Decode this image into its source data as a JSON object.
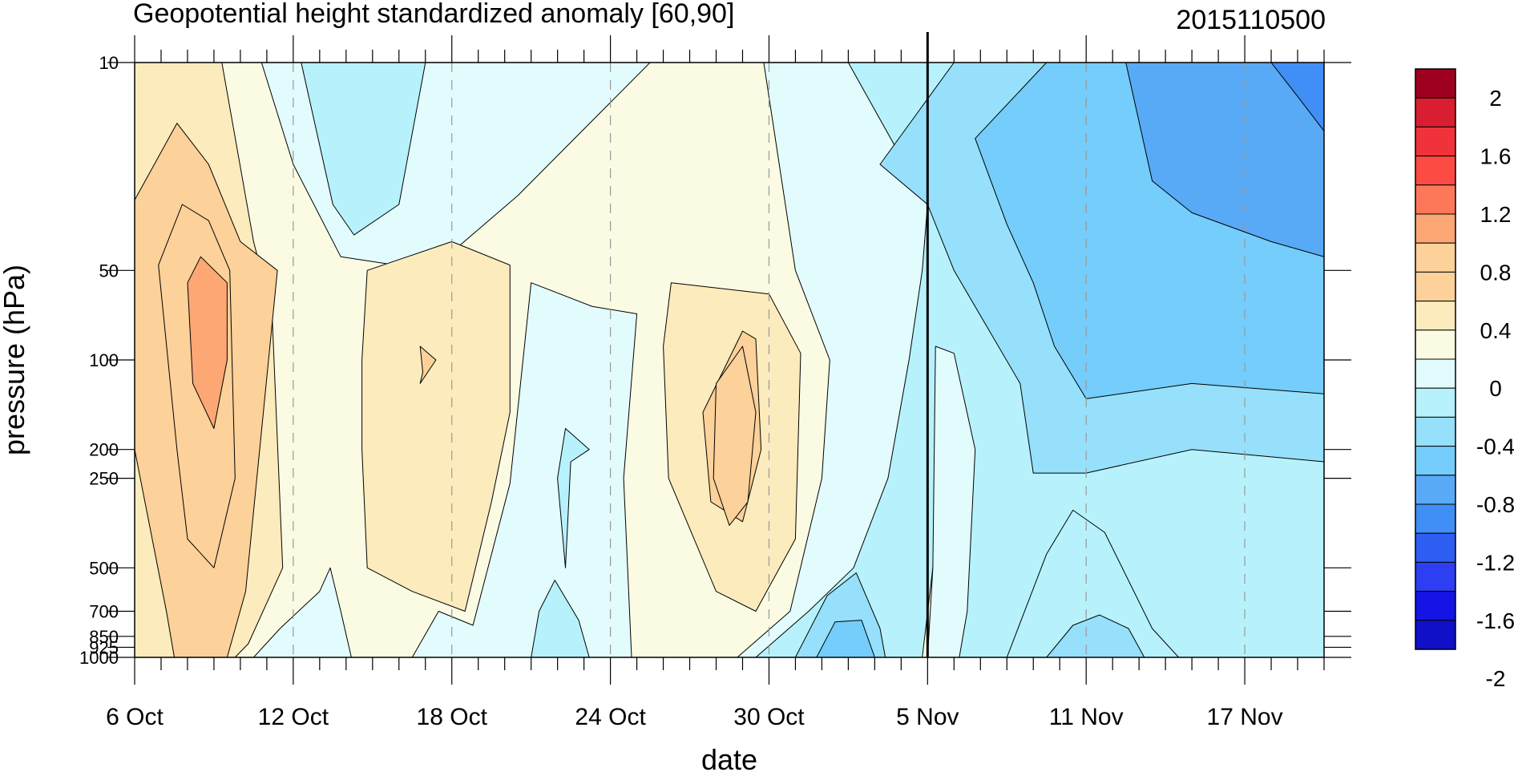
{
  "chart_data": {
    "type": "heatmap",
    "title": "Geopotential height standardized anomaly [60,90]",
    "right_title": "2015110500",
    "xlabel": "date",
    "ylabel": "pressure (hPa)",
    "x_ticks": [
      {
        "day": 0,
        "label": "6 Oct"
      },
      {
        "day": 6,
        "label": "12 Oct"
      },
      {
        "day": 12,
        "label": "18 Oct"
      },
      {
        "day": 18,
        "label": "24 Oct"
      },
      {
        "day": 24,
        "label": "30 Oct"
      },
      {
        "day": 30,
        "label": "5 Nov"
      },
      {
        "day": 36,
        "label": "11 Nov"
      },
      {
        "day": 42,
        "label": "17 Nov"
      }
    ],
    "x_range_days": [
      0,
      45
    ],
    "marker_day": 30,
    "y_levels": [
      10,
      50,
      100,
      200,
      250,
      500,
      700,
      850,
      925,
      1000
    ],
    "y_tick_labels": [
      "10",
      "50",
      "100",
      "200",
      "250",
      "500",
      "700",
      "850",
      "925",
      "1000"
    ],
    "y_scale": "log",
    "y_inverted": true,
    "contour_levels": [
      -2.2,
      -2,
      -1.8,
      -1.6,
      -1.4,
      -1.2,
      -1,
      -0.8,
      -0.6,
      -0.4,
      -0.2,
      0,
      0.2,
      0.4,
      0.6,
      0.8,
      1,
      1.2,
      1.4,
      1.6,
      1.8,
      2,
      2.2
    ],
    "colorbar_colors": [
      "#1010c8",
      "#1414e6",
      "#2e3ef2",
      "#2e5ef2",
      "#3f8ff6",
      "#58aaf7",
      "#74cdfa",
      "#96e0fb",
      "#b7f2fc",
      "#e2fbfc",
      "#fbfbe3",
      "#fcebbd",
      "#fcd19a",
      "#fcd19a",
      "#fca774",
      "#fc7859",
      "#fc4b43",
      "#f0333b",
      "#d81e30",
      "#a00020"
    ],
    "colorbar_labels": [
      "2",
      "1.6",
      "1.2",
      "0.8",
      "0.4",
      "0",
      "-0.4",
      "-0.8",
      "-1.2",
      "-1.6",
      "-2"
    ],
    "grid": "dashed vertical lines at labeled dates",
    "colorbar_position": "right"
  }
}
